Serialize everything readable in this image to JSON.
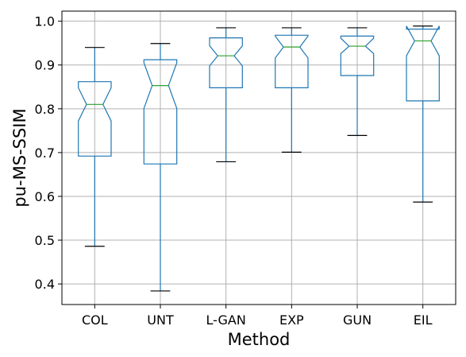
{
  "chart_data": {
    "type": "boxplot",
    "notched": true,
    "grid": true,
    "xlabel": "Method",
    "ylabel": "pu-MS-SSIM",
    "ylim": [
      0.353,
      1.023
    ],
    "yticks": [
      "0.4",
      "0.5",
      "0.6",
      "0.7",
      "0.8",
      "0.9",
      "1.0"
    ],
    "categories": [
      "COL",
      "UNT",
      "L-GAN",
      "EXP",
      "GUN",
      "EIL"
    ],
    "boxes": [
      {
        "category": "COL",
        "whisker_low": 0.486,
        "q1": 0.692,
        "notch_low": 0.772,
        "median": 0.81,
        "notch_high": 0.848,
        "q3": 0.862,
        "whisker_high": 0.94
      },
      {
        "category": "UNT",
        "whisker_low": 0.384,
        "q1": 0.674,
        "notch_low": 0.801,
        "median": 0.853,
        "notch_high": 0.905,
        "q3": 0.912,
        "whisker_high": 0.949
      },
      {
        "category": "L-GAN",
        "whisker_low": 0.679,
        "q1": 0.848,
        "notch_low": 0.898,
        "median": 0.921,
        "notch_high": 0.944,
        "q3": 0.962,
        "whisker_high": 0.985
      },
      {
        "category": "EXP",
        "whisker_low": 0.701,
        "q1": 0.848,
        "notch_low": 0.916,
        "median": 0.941,
        "notch_high": 0.966,
        "q3": 0.968,
        "whisker_high": 0.985
      },
      {
        "category": "GUN",
        "whisker_low": 0.739,
        "q1": 0.876,
        "notch_low": 0.926,
        "median": 0.943,
        "notch_high": 0.961,
        "q3": 0.966,
        "whisker_high": 0.985
      },
      {
        "category": "EIL",
        "whisker_low": 0.587,
        "q1": 0.818,
        "notch_low": 0.921,
        "median": 0.955,
        "notch_high": 0.989,
        "q3": 0.982,
        "whisker_high": 0.989
      }
    ],
    "colors": {
      "box": "#1f77b4",
      "median": "#2ca02c",
      "whisker": "#1f77b4",
      "cap": "#000000",
      "grid": "#b0b0b0"
    }
  }
}
